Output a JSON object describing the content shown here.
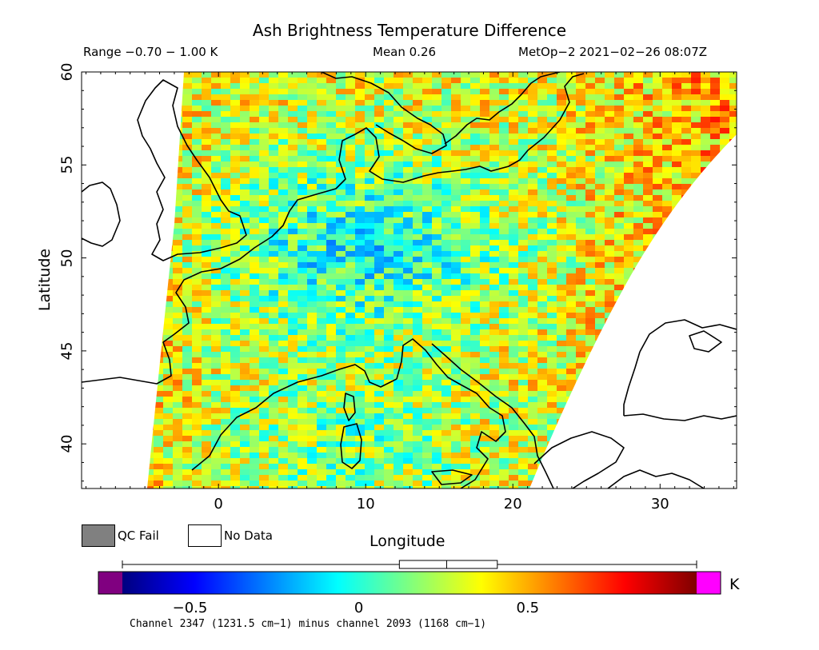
{
  "title": "Ash Brightness Temperature Difference",
  "range_label": "Range −0.70 − 1.00 K",
  "mean_label": "Mean 0.26",
  "satellite_label": "MetOp−2 2021−02−26 08:07Z",
  "axes": {
    "xlabel": "Longitude",
    "ylabel": "Latitude",
    "x_ticks": [
      {
        "value": 0,
        "label": "0"
      },
      {
        "value": 10,
        "label": "10"
      },
      {
        "value": 20,
        "label": "20"
      },
      {
        "value": 30,
        "label": "30"
      }
    ],
    "y_ticks": [
      {
        "value": 40,
        "label": "40"
      },
      {
        "value": 45,
        "label": "45"
      },
      {
        "value": 50,
        "label": "50"
      },
      {
        "value": 55,
        "label": "55"
      },
      {
        "value": 60,
        "label": "60"
      }
    ],
    "xlim": [
      -9.3,
      35.2
    ],
    "ylim": [
      37.6,
      60.0
    ]
  },
  "legend": {
    "qc_fail": {
      "label": "QC Fail",
      "color": "#808080"
    },
    "no_data": {
      "label": "No Data",
      "color": "#ffffff"
    }
  },
  "colorbar": {
    "min": -0.7,
    "max": 1.0,
    "ticks": [
      {
        "value": -0.5,
        "label": "−0.5"
      },
      {
        "value": 0,
        "label": "0"
      },
      {
        "value": 0.5,
        "label": "0.5"
      }
    ],
    "units": "K",
    "underflow_color": "#800080",
    "overflow_color": "#ff00ff",
    "colors": [
      "#00007f",
      "#0000ff",
      "#007fff",
      "#00ffff",
      "#7fff7f",
      "#ffff00",
      "#ff7f00",
      "#ff0000",
      "#7f0000"
    ],
    "boxplot": {
      "q1": 0.12,
      "median": 0.26,
      "q3": 0.41,
      "whisker_low": -0.7,
      "whisker_high": 1.0
    }
  },
  "caption": "Channel 2347 (1231.5 cm−1) minus channel 2093 (1168 cm−1)",
  "mean_value": 0.26
}
